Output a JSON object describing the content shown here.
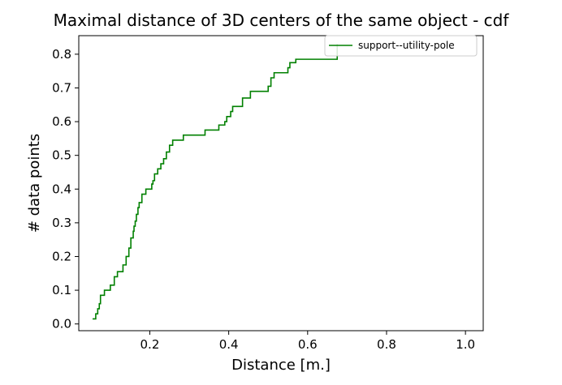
{
  "chart_data": {
    "type": "line",
    "title": "Maximal distance of 3D centers of the same object - cdf",
    "xlabel": "Distance [m.]",
    "ylabel": "# data points",
    "xlim": [
      0.02,
      1.045
    ],
    "ylim": [
      -0.02,
      0.855
    ],
    "xticks": [
      0.2,
      0.4,
      0.6,
      0.8,
      1.0
    ],
    "xtick_labels": [
      "0.2",
      "0.4",
      "0.6",
      "0.8",
      "1.0"
    ],
    "yticks": [
      0.0,
      0.1,
      0.2,
      0.3,
      0.4,
      0.5,
      0.6,
      0.7,
      0.8
    ],
    "ytick_labels": [
      "0.0",
      "0.1",
      "0.2",
      "0.3",
      "0.4",
      "0.5",
      "0.6",
      "0.7",
      "0.8"
    ],
    "grid": false,
    "legend_position": "top-right",
    "series": [
      {
        "name": "support--utility-pole",
        "color": "#008000",
        "step": true,
        "x": [
          0.055,
          0.063,
          0.068,
          0.072,
          0.075,
          0.085,
          0.1,
          0.11,
          0.118,
          0.132,
          0.14,
          0.147,
          0.152,
          0.158,
          0.16,
          0.163,
          0.166,
          0.17,
          0.173,
          0.176,
          0.18,
          0.19,
          0.205,
          0.208,
          0.212,
          0.22,
          0.228,
          0.235,
          0.242,
          0.25,
          0.258,
          0.27,
          0.285,
          0.34,
          0.375,
          0.39,
          0.395,
          0.405,
          0.41,
          0.435,
          0.445,
          0.455,
          0.5,
          0.507,
          0.515,
          0.53,
          0.55,
          0.555,
          0.57,
          0.575,
          0.675
        ],
        "y": [
          0.015,
          0.03,
          0.045,
          0.06,
          0.085,
          0.1,
          0.115,
          0.14,
          0.155,
          0.175,
          0.2,
          0.225,
          0.255,
          0.275,
          0.29,
          0.305,
          0.325,
          0.345,
          0.36,
          0.36,
          0.385,
          0.4,
          0.415,
          0.425,
          0.445,
          0.46,
          0.475,
          0.49,
          0.51,
          0.53,
          0.545,
          0.545,
          0.56,
          0.575,
          0.59,
          0.6,
          0.615,
          0.63,
          0.645,
          0.67,
          0.67,
          0.69,
          0.705,
          0.73,
          0.745,
          0.745,
          0.76,
          0.775,
          0.785,
          0.785,
          0.83
        ]
      }
    ]
  }
}
